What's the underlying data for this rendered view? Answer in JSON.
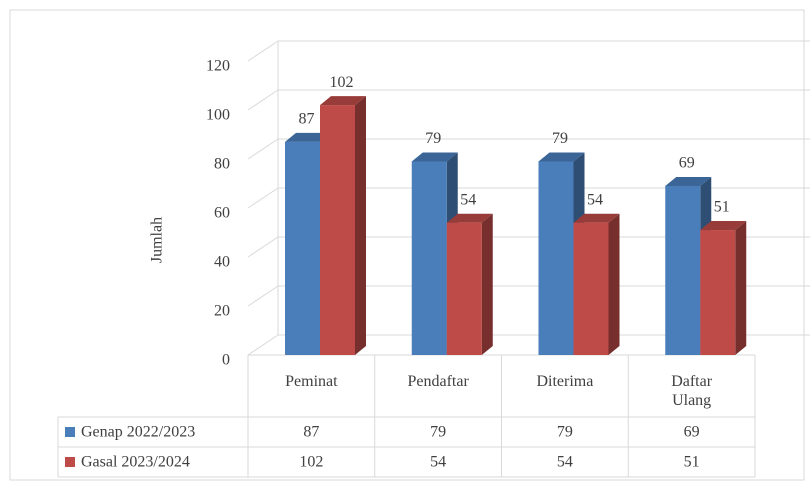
{
  "chart_data": {
    "type": "bar3d",
    "y_label": "Jumlah",
    "categories": [
      "Peminat",
      "Pendaftar",
      "Diterima",
      "Daftar Ulang"
    ],
    "series": [
      {
        "name": "Genap 2022/2023",
        "color": "#4a7ebb",
        "values": [
          87,
          79,
          79,
          69
        ]
      },
      {
        "name": "Gasal 2023/2024",
        "color": "#be4b48",
        "values": [
          102,
          54,
          54,
          51
        ]
      }
    ],
    "ylim": [
      0,
      120
    ],
    "yticks": [
      0,
      20,
      40,
      60,
      80,
      100,
      120
    ],
    "grid": true,
    "data_table": true
  }
}
